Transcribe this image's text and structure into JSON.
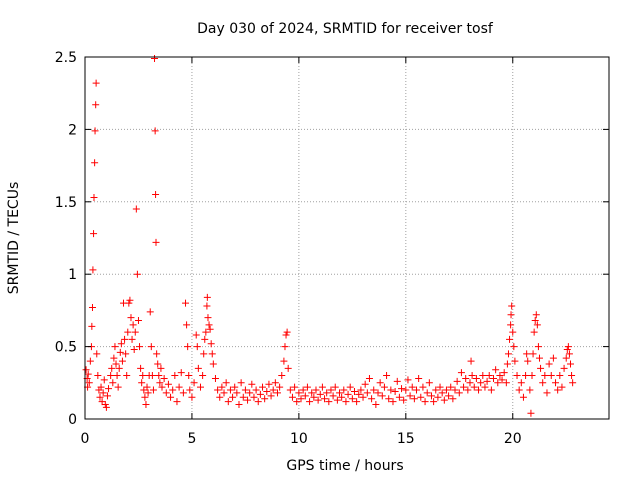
{
  "chart_data": {
    "type": "scatter",
    "title": "Day 030 of 2024, SRMTID for receiver tosf",
    "xlabel": "GPS time / hours",
    "ylabel": "SRMTID / TECUs",
    "xlim": [
      0,
      24.5
    ],
    "ylim": [
      0,
      2.5
    ],
    "xticks": [
      0,
      5,
      10,
      15,
      20
    ],
    "xtick_labels": [
      "0",
      "5",
      "10",
      "15",
      "20"
    ],
    "yticks": [
      0,
      0.5,
      1,
      1.5,
      2,
      2.5
    ],
    "ytick_labels": [
      "0",
      "0.5",
      "1",
      "1.5",
      "2",
      "2.5"
    ],
    "grid": true,
    "marker": "+",
    "marker_color": "#ff0000",
    "series": [
      {
        "name": "SRMTID",
        "points": [
          [
            0.05,
            0.34
          ],
          [
            0.1,
            0.28
          ],
          [
            0.12,
            0.22
          ],
          [
            0.15,
            0.31
          ],
          [
            0.2,
            0.25
          ],
          [
            0.25,
            0.4
          ],
          [
            0.3,
            0.5
          ],
          [
            0.32,
            0.64
          ],
          [
            0.35,
            0.77
          ],
          [
            0.37,
            1.03
          ],
          [
            0.4,
            1.28
          ],
          [
            0.42,
            1.53
          ],
          [
            0.45,
            1.77
          ],
          [
            0.47,
            1.99
          ],
          [
            0.5,
            2.17
          ],
          [
            0.52,
            2.32
          ],
          [
            0.55,
            0.45
          ],
          [
            0.6,
            0.3
          ],
          [
            0.65,
            0.2
          ],
          [
            0.7,
            0.15
          ],
          [
            0.75,
            0.22
          ],
          [
            0.8,
            0.12
          ],
          [
            0.85,
            0.18
          ],
          [
            0.9,
            0.27
          ],
          [
            0.95,
            0.1
          ],
          [
            1.0,
            0.08
          ],
          [
            1.05,
            0.16
          ],
          [
            1.1,
            0.21
          ],
          [
            1.2,
            0.3
          ],
          [
            1.25,
            0.35
          ],
          [
            1.3,
            0.25
          ],
          [
            1.35,
            0.42
          ],
          [
            1.4,
            0.5
          ],
          [
            1.45,
            0.38
          ],
          [
            1.5,
            0.3
          ],
          [
            1.55,
            0.22
          ],
          [
            1.6,
            0.35
          ],
          [
            1.65,
            0.46
          ],
          [
            1.7,
            0.52
          ],
          [
            1.75,
            0.4
          ],
          [
            1.8,
            0.8
          ],
          [
            1.85,
            0.55
          ],
          [
            1.9,
            0.45
          ],
          [
            1.95,
            0.3
          ],
          [
            2.0,
            0.6
          ],
          [
            2.05,
            0.8
          ],
          [
            2.1,
            0.82
          ],
          [
            2.15,
            0.7
          ],
          [
            2.2,
            0.55
          ],
          [
            2.25,
            0.65
          ],
          [
            2.3,
            0.48
          ],
          [
            2.35,
            0.6
          ],
          [
            2.4,
            1.45
          ],
          [
            2.45,
            1.0
          ],
          [
            2.5,
            0.68
          ],
          [
            2.55,
            0.5
          ],
          [
            2.6,
            0.35
          ],
          [
            2.65,
            0.25
          ],
          [
            2.7,
            0.3
          ],
          [
            2.75,
            0.2
          ],
          [
            2.8,
            0.15
          ],
          [
            2.85,
            0.1
          ],
          [
            2.9,
            0.22
          ],
          [
            2.95,
            0.18
          ],
          [
            3.0,
            0.3
          ],
          [
            3.05,
            0.74
          ],
          [
            3.1,
            0.5
          ],
          [
            3.15,
            0.3
          ],
          [
            3.2,
            0.2
          ],
          [
            3.25,
            2.49
          ],
          [
            3.28,
            1.99
          ],
          [
            3.3,
            1.55
          ],
          [
            3.32,
            1.22
          ],
          [
            3.35,
            0.45
          ],
          [
            3.4,
            0.38
          ],
          [
            3.45,
            0.3
          ],
          [
            3.5,
            0.25
          ],
          [
            3.55,
            0.35
          ],
          [
            3.6,
            0.22
          ],
          [
            3.7,
            0.28
          ],
          [
            3.8,
            0.18
          ],
          [
            3.9,
            0.24
          ],
          [
            4.0,
            0.15
          ],
          [
            4.1,
            0.2
          ],
          [
            4.2,
            0.3
          ],
          [
            4.3,
            0.12
          ],
          [
            4.4,
            0.22
          ],
          [
            4.5,
            0.32
          ],
          [
            4.6,
            0.18
          ],
          [
            4.7,
            0.8
          ],
          [
            4.75,
            0.65
          ],
          [
            4.8,
            0.5
          ],
          [
            4.85,
            0.3
          ],
          [
            4.9,
            0.2
          ],
          [
            5.0,
            0.15
          ],
          [
            5.1,
            0.25
          ],
          [
            5.2,
            0.58
          ],
          [
            5.25,
            0.5
          ],
          [
            5.3,
            0.35
          ],
          [
            5.4,
            0.22
          ],
          [
            5.5,
            0.3
          ],
          [
            5.55,
            0.45
          ],
          [
            5.6,
            0.55
          ],
          [
            5.65,
            0.6
          ],
          [
            5.7,
            0.78
          ],
          [
            5.72,
            0.84
          ],
          [
            5.75,
            0.7
          ],
          [
            5.8,
            0.65
          ],
          [
            5.85,
            0.62
          ],
          [
            5.9,
            0.52
          ],
          [
            5.95,
            0.45
          ],
          [
            6.0,
            0.38
          ],
          [
            6.1,
            0.28
          ],
          [
            6.2,
            0.2
          ],
          [
            6.3,
            0.15
          ],
          [
            6.4,
            0.22
          ],
          [
            6.5,
            0.18
          ],
          [
            6.6,
            0.25
          ],
          [
            6.7,
            0.12
          ],
          [
            6.8,
            0.2
          ],
          [
            6.9,
            0.15
          ],
          [
            7.0,
            0.22
          ],
          [
            7.1,
            0.18
          ],
          [
            7.2,
            0.1
          ],
          [
            7.3,
            0.25
          ],
          [
            7.4,
            0.15
          ],
          [
            7.5,
            0.2
          ],
          [
            7.6,
            0.13
          ],
          [
            7.7,
            0.18
          ],
          [
            7.8,
            0.24
          ],
          [
            7.9,
            0.15
          ],
          [
            8.0,
            0.2
          ],
          [
            8.1,
            0.12
          ],
          [
            8.2,
            0.17
          ],
          [
            8.3,
            0.22
          ],
          [
            8.4,
            0.14
          ],
          [
            8.5,
            0.19
          ],
          [
            8.6,
            0.24
          ],
          [
            8.7,
            0.16
          ],
          [
            8.8,
            0.2
          ],
          [
            8.9,
            0.25
          ],
          [
            9.0,
            0.18
          ],
          [
            9.1,
            0.22
          ],
          [
            9.2,
            0.3
          ],
          [
            9.3,
            0.4
          ],
          [
            9.35,
            0.5
          ],
          [
            9.4,
            0.58
          ],
          [
            9.45,
            0.6
          ],
          [
            9.5,
            0.35
          ],
          [
            9.6,
            0.2
          ],
          [
            9.7,
            0.15
          ],
          [
            9.8,
            0.22
          ],
          [
            9.9,
            0.12
          ],
          [
            10.0,
            0.18
          ],
          [
            10.1,
            0.14
          ],
          [
            10.2,
            0.2
          ],
          [
            10.3,
            0.16
          ],
          [
            10.4,
            0.22
          ],
          [
            10.5,
            0.12
          ],
          [
            10.6,
            0.18
          ],
          [
            10.7,
            0.15
          ],
          [
            10.8,
            0.2
          ],
          [
            10.9,
            0.13
          ],
          [
            11.0,
            0.17
          ],
          [
            11.1,
            0.22
          ],
          [
            11.2,
            0.14
          ],
          [
            11.3,
            0.18
          ],
          [
            11.4,
            0.12
          ],
          [
            11.5,
            0.2
          ],
          [
            11.6,
            0.16
          ],
          [
            11.7,
            0.22
          ],
          [
            11.8,
            0.13
          ],
          [
            11.9,
            0.18
          ],
          [
            12.0,
            0.15
          ],
          [
            12.1,
            0.2
          ],
          [
            12.2,
            0.12
          ],
          [
            12.3,
            0.17
          ],
          [
            12.4,
            0.22
          ],
          [
            12.5,
            0.14
          ],
          [
            12.6,
            0.19
          ],
          [
            12.7,
            0.12
          ],
          [
            12.8,
            0.17
          ],
          [
            12.9,
            0.2
          ],
          [
            13.0,
            0.15
          ],
          [
            13.1,
            0.24
          ],
          [
            13.2,
            0.18
          ],
          [
            13.3,
            0.28
          ],
          [
            13.4,
            0.14
          ],
          [
            13.5,
            0.2
          ],
          [
            13.6,
            0.1
          ],
          [
            13.7,
            0.18
          ],
          [
            13.8,
            0.25
          ],
          [
            13.9,
            0.16
          ],
          [
            14.0,
            0.22
          ],
          [
            14.1,
            0.3
          ],
          [
            14.2,
            0.14
          ],
          [
            14.3,
            0.2
          ],
          [
            14.4,
            0.12
          ],
          [
            14.5,
            0.19
          ],
          [
            14.6,
            0.26
          ],
          [
            14.7,
            0.15
          ],
          [
            14.8,
            0.21
          ],
          [
            14.9,
            0.13
          ],
          [
            15.0,
            0.2
          ],
          [
            15.1,
            0.27
          ],
          [
            15.2,
            0.16
          ],
          [
            15.3,
            0.22
          ],
          [
            15.4,
            0.14
          ],
          [
            15.5,
            0.2
          ],
          [
            15.6,
            0.28
          ],
          [
            15.7,
            0.15
          ],
          [
            15.8,
            0.22
          ],
          [
            15.9,
            0.12
          ],
          [
            16.0,
            0.18
          ],
          [
            16.1,
            0.25
          ],
          [
            16.2,
            0.16
          ],
          [
            16.3,
            0.12
          ],
          [
            16.4,
            0.2
          ],
          [
            16.5,
            0.15
          ],
          [
            16.6,
            0.22
          ],
          [
            16.7,
            0.18
          ],
          [
            16.8,
            0.13
          ],
          [
            16.9,
            0.2
          ],
          [
            17.0,
            0.16
          ],
          [
            17.1,
            0.22
          ],
          [
            17.2,
            0.14
          ],
          [
            17.3,
            0.2
          ],
          [
            17.4,
            0.26
          ],
          [
            17.5,
            0.18
          ],
          [
            17.6,
            0.32
          ],
          [
            17.7,
            0.22
          ],
          [
            17.8,
            0.28
          ],
          [
            17.9,
            0.2
          ],
          [
            18.0,
            0.25
          ],
          [
            18.05,
            0.4
          ],
          [
            18.1,
            0.3
          ],
          [
            18.2,
            0.22
          ],
          [
            18.3,
            0.28
          ],
          [
            18.4,
            0.2
          ],
          [
            18.5,
            0.25
          ],
          [
            18.6,
            0.3
          ],
          [
            18.7,
            0.22
          ],
          [
            18.8,
            0.26
          ],
          [
            18.9,
            0.3
          ],
          [
            19.0,
            0.2
          ],
          [
            19.1,
            0.28
          ],
          [
            19.2,
            0.34
          ],
          [
            19.3,
            0.25
          ],
          [
            19.4,
            0.3
          ],
          [
            19.5,
            0.27
          ],
          [
            19.6,
            0.32
          ],
          [
            19.7,
            0.25
          ],
          [
            19.75,
            0.38
          ],
          [
            19.8,
            0.45
          ],
          [
            19.85,
            0.55
          ],
          [
            19.9,
            0.65
          ],
          [
            19.92,
            0.72
          ],
          [
            19.95,
            0.78
          ],
          [
            20.0,
            0.6
          ],
          [
            20.05,
            0.5
          ],
          [
            20.1,
            0.4
          ],
          [
            20.2,
            0.3
          ],
          [
            20.3,
            0.2
          ],
          [
            20.4,
            0.25
          ],
          [
            20.5,
            0.15
          ],
          [
            20.6,
            0.3
          ],
          [
            20.65,
            0.45
          ],
          [
            20.7,
            0.4
          ],
          [
            20.8,
            0.2
          ],
          [
            20.85,
            0.04
          ],
          [
            20.9,
            0.3
          ],
          [
            20.95,
            0.45
          ],
          [
            21.0,
            0.6
          ],
          [
            21.05,
            0.68
          ],
          [
            21.1,
            0.72
          ],
          [
            21.15,
            0.65
          ],
          [
            21.2,
            0.5
          ],
          [
            21.25,
            0.42
          ],
          [
            21.3,
            0.35
          ],
          [
            21.4,
            0.25
          ],
          [
            21.5,
            0.3
          ],
          [
            21.6,
            0.18
          ],
          [
            21.7,
            0.38
          ],
          [
            21.8,
            0.3
          ],
          [
            21.9,
            0.42
          ],
          [
            22.0,
            0.25
          ],
          [
            22.1,
            0.2
          ],
          [
            22.2,
            0.3
          ],
          [
            22.3,
            0.22
          ],
          [
            22.4,
            0.35
          ],
          [
            22.5,
            0.42
          ],
          [
            22.55,
            0.48
          ],
          [
            22.6,
            0.5
          ],
          [
            22.65,
            0.45
          ],
          [
            22.7,
            0.38
          ],
          [
            22.75,
            0.3
          ],
          [
            22.8,
            0.25
          ]
        ]
      }
    ]
  }
}
